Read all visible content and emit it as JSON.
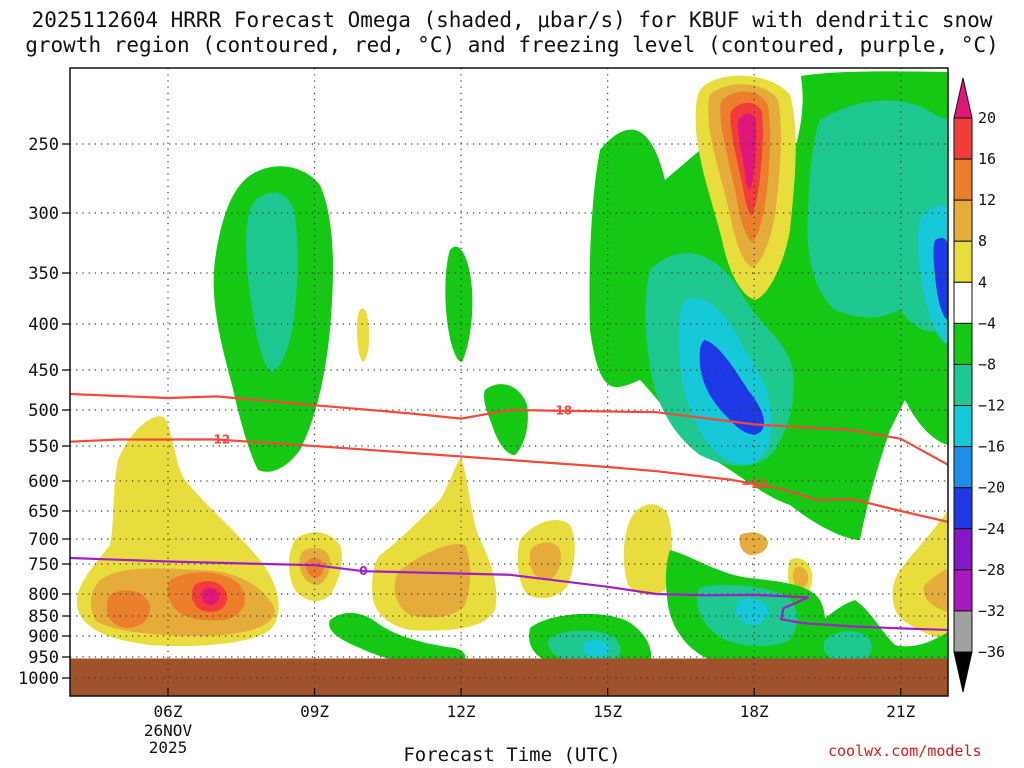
{
  "title_line1": "2025112604 HRRR Forecast Omega (shaded, μbar/s) for KBUF with dendritic snow",
  "title_line2": "growth region (contoured, red, °C) and freezing level (contoured, purple, °C)",
  "credit": "coolwx.com/models",
  "chart_data": {
    "type": "heatmap",
    "xlabel": "Forecast Time (UTC)",
    "x_ticks": [
      {
        "label": "06Z",
        "hour": 6,
        "sub": [
          "26NOV",
          "2025"
        ]
      },
      {
        "label": "09Z",
        "hour": 9
      },
      {
        "label": "12Z",
        "hour": 12
      },
      {
        "label": "15Z",
        "hour": 15
      },
      {
        "label": "18Z",
        "hour": 18
      },
      {
        "label": "21Z",
        "hour": 21
      }
    ],
    "x_range_hours": [
      4,
      22
    ],
    "y_ticks_hpa": [
      250,
      300,
      350,
      400,
      450,
      500,
      550,
      600,
      650,
      700,
      750,
      800,
      850,
      900,
      950,
      1000
    ],
    "y_range_hpa": [
      200,
      1000
    ],
    "colorbar": {
      "labels": [
        "20",
        "16",
        "12",
        "8",
        "4",
        "−4",
        "−8",
        "−12",
        "−16",
        "−20",
        "−24",
        "−28",
        "−32",
        "−36"
      ],
      "colors": [
        "#e0167a",
        "#f23c3c",
        "#ec7f2c",
        "#e5ac3c",
        "#e8dd3c",
        "#ffffff",
        "#14c814",
        "#1ec890",
        "#16c8d8",
        "#1e8ee6",
        "#1e3ae6",
        "#8418c8",
        "#a818c0",
        "#a0a0a0"
      ]
    },
    "contours": [
      {
        "name": "dgz -18",
        "label": "−18",
        "color": "#f04a3a",
        "points": [
          [
            4.0,
            480
          ],
          [
            6,
            485
          ],
          [
            7,
            483
          ],
          [
            9,
            494
          ],
          [
            11,
            505
          ],
          [
            12,
            512
          ],
          [
            13,
            500
          ],
          [
            16,
            503
          ],
          [
            18,
            520
          ],
          [
            20,
            528
          ],
          [
            21,
            540
          ],
          [
            22,
            578
          ]
        ]
      },
      {
        "name": "dgz -12",
        "label": "−12",
        "color": "#f04a3a",
        "points": [
          [
            4.0,
            544
          ],
          [
            5,
            541
          ],
          [
            7,
            541
          ],
          [
            9,
            550
          ],
          [
            12,
            565
          ],
          [
            15,
            580
          ],
          [
            16,
            586
          ],
          [
            17.5,
            598
          ],
          [
            18.5,
            612
          ],
          [
            19.3,
            632
          ],
          [
            20,
            630
          ],
          [
            21,
            650
          ],
          [
            22,
            670
          ]
        ]
      },
      {
        "name": "freezing level",
        "label": "0",
        "color": "#a020c8",
        "points": [
          [
            4.0,
            738
          ],
          [
            6,
            745
          ],
          [
            8,
            750
          ],
          [
            9,
            752
          ],
          [
            10,
            762
          ],
          [
            11,
            764
          ],
          [
            13,
            768
          ],
          [
            14,
            778
          ],
          [
            15,
            788
          ],
          [
            16,
            800
          ],
          [
            17,
            803
          ],
          [
            18,
            802
          ],
          [
            18.8,
            806
          ],
          [
            19.1,
            808
          ],
          [
            18.9,
            818
          ],
          [
            18.6,
            832
          ],
          [
            18.55,
            858
          ],
          [
            19,
            868
          ],
          [
            20,
            876
          ],
          [
            21,
            881
          ],
          [
            22,
            885
          ]
        ]
      }
    ],
    "ground": {
      "from_hpa": 975,
      "to_hpa": 1000,
      "color": "#a0522d"
    }
  }
}
